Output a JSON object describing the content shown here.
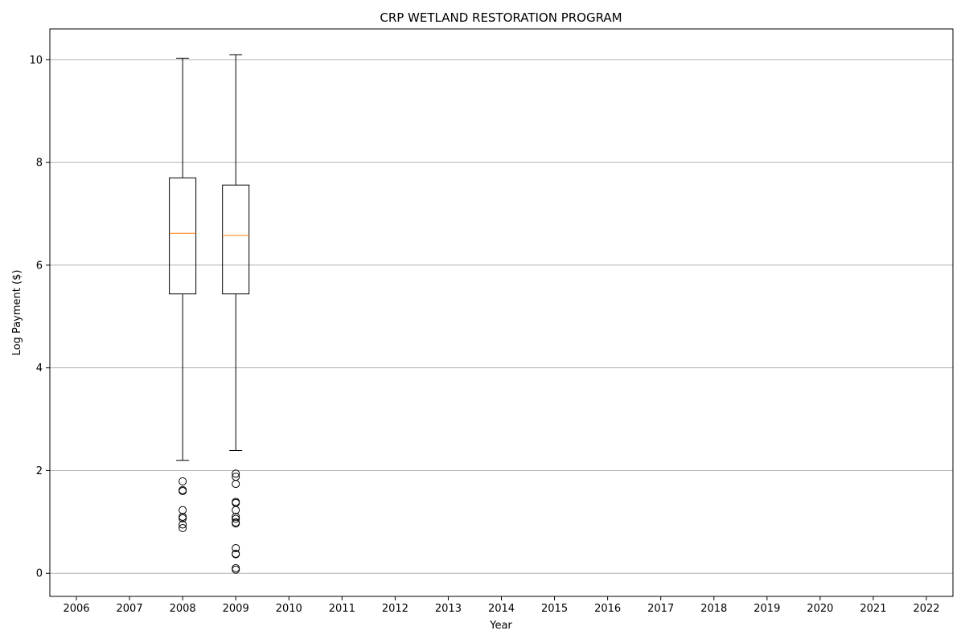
{
  "chart_data": {
    "type": "box",
    "title": "CRP WETLAND RESTORATION PROGRAM",
    "xlabel": "Year",
    "ylabel": "Log Payment ($)",
    "categories": [
      "2006",
      "2007",
      "2008",
      "2009",
      "2010",
      "2011",
      "2012",
      "2013",
      "2014",
      "2015",
      "2016",
      "2017",
      "2018",
      "2019",
      "2020",
      "2021",
      "2022"
    ],
    "ylim": [
      -0.45,
      10.6
    ],
    "yticks": [
      0,
      2,
      4,
      6,
      8,
      10
    ],
    "grid": "y",
    "boxes": [
      {
        "category": "2008",
        "whisker_low": 2.2,
        "q1": 5.44,
        "median": 6.62,
        "q3": 7.7,
        "whisker_high": 10.03,
        "outliers": [
          1.79,
          1.62,
          1.6,
          1.23,
          1.1,
          1.07,
          0.95,
          0.88
        ]
      },
      {
        "category": "2009",
        "whisker_low": 2.39,
        "q1": 5.44,
        "median": 6.58,
        "q3": 7.56,
        "whisker_high": 10.1,
        "outliers": [
          1.94,
          1.88,
          1.74,
          1.39,
          1.37,
          1.23,
          1.1,
          1.06,
          0.99,
          0.97,
          0.49,
          0.38,
          0.37,
          0.1,
          0.07
        ]
      }
    ],
    "colors": {
      "box": "#000000",
      "median": "#ff7f0e",
      "grid": "#b0b0b0"
    }
  }
}
